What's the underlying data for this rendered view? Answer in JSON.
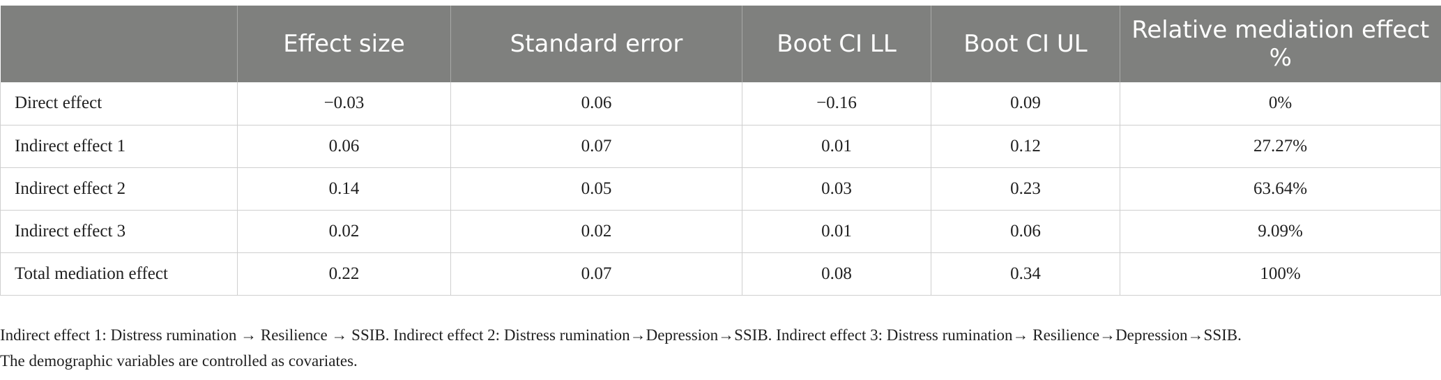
{
  "table": {
    "headers": [
      "",
      "Effect size",
      "Standard error",
      "Boot CI LL",
      "Boot CI UL",
      "Relative mediation effect %"
    ],
    "rows": [
      [
        "Direct effect",
        "−0.03",
        "0.06",
        "−0.16",
        "0.09",
        "0%"
      ],
      [
        "Indirect effect 1",
        "0.06",
        "0.07",
        "0.01",
        "0.12",
        "27.27%"
      ],
      [
        "Indirect effect 2",
        "0.14",
        "0.05",
        "0.03",
        "0.23",
        "63.64%"
      ],
      [
        "Indirect effect 3",
        "0.02",
        "0.02",
        "0.01",
        "0.06",
        "9.09%"
      ],
      [
        "Total mediation effect",
        "0.22",
        "0.07",
        "0.08",
        "0.34",
        "100%"
      ]
    ]
  },
  "footnote": {
    "line1": "Indirect effect 1: Distress rumination → Resilience → SSIB. Indirect effect 2: Distress rumination→Depression→SSIB. Indirect effect 3: Distress rumination→ Resilience→Depression→SSIB.",
    "line2": "The demographic variables are controlled as covariates."
  },
  "colors": {
    "header_bg": "#7f807e",
    "header_text": "#ffffff",
    "grid": "#cfcfcf"
  }
}
